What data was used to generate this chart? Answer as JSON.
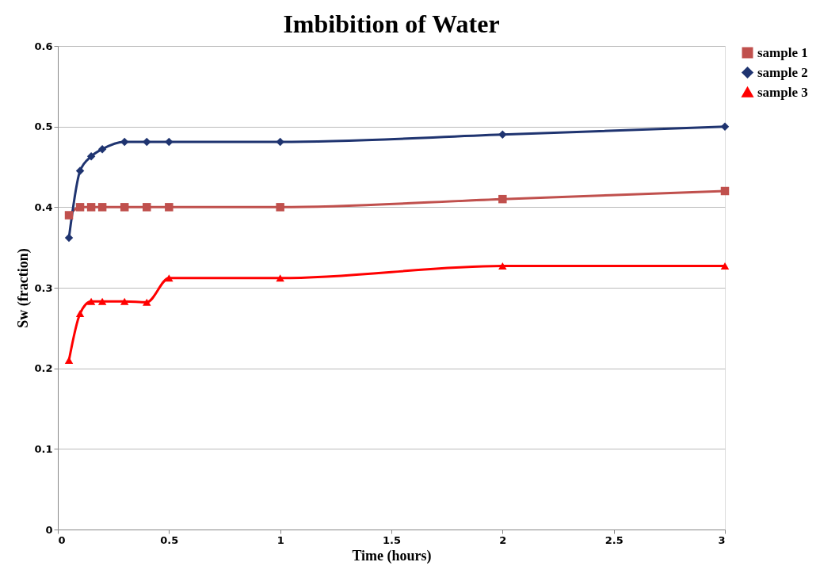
{
  "chart_data": {
    "type": "line",
    "title": "Imbibition of Water",
    "xlabel": "Time (hours)",
    "ylabel": "Sw (fraction)",
    "x": [
      0.05,
      0.1,
      0.15,
      0.2,
      0.3,
      0.4,
      0.5,
      1,
      2,
      3
    ],
    "series": [
      {
        "name": "sample 1",
        "color": "#c0504d",
        "marker": "square",
        "values": [
          0.39,
          0.4,
          0.4,
          0.4,
          0.4,
          0.4,
          0.4,
          0.4,
          0.41,
          0.42
        ]
      },
      {
        "name": "sample 2",
        "color": "#1f3470",
        "marker": "diamond",
        "values": [
          0.362,
          0.445,
          0.463,
          0.472,
          0.481,
          0.481,
          0.481,
          0.481,
          0.49,
          0.5
        ]
      },
      {
        "name": "sample 3",
        "color": "#ff0000",
        "marker": "triangle",
        "values": [
          0.21,
          0.268,
          0.283,
          0.283,
          0.283,
          0.282,
          0.312,
          0.312,
          0.327,
          0.327
        ]
      }
    ],
    "xlim": [
      0,
      3
    ],
    "xticks": [
      0,
      0.5,
      1,
      1.5,
      2,
      2.5,
      3
    ],
    "ylim": [
      0,
      0.6
    ],
    "yticks": [
      0,
      0.1,
      0.2,
      0.3,
      0.4,
      0.5,
      0.6
    ],
    "grid": "y",
    "legend": "right",
    "line_style": "solid"
  }
}
